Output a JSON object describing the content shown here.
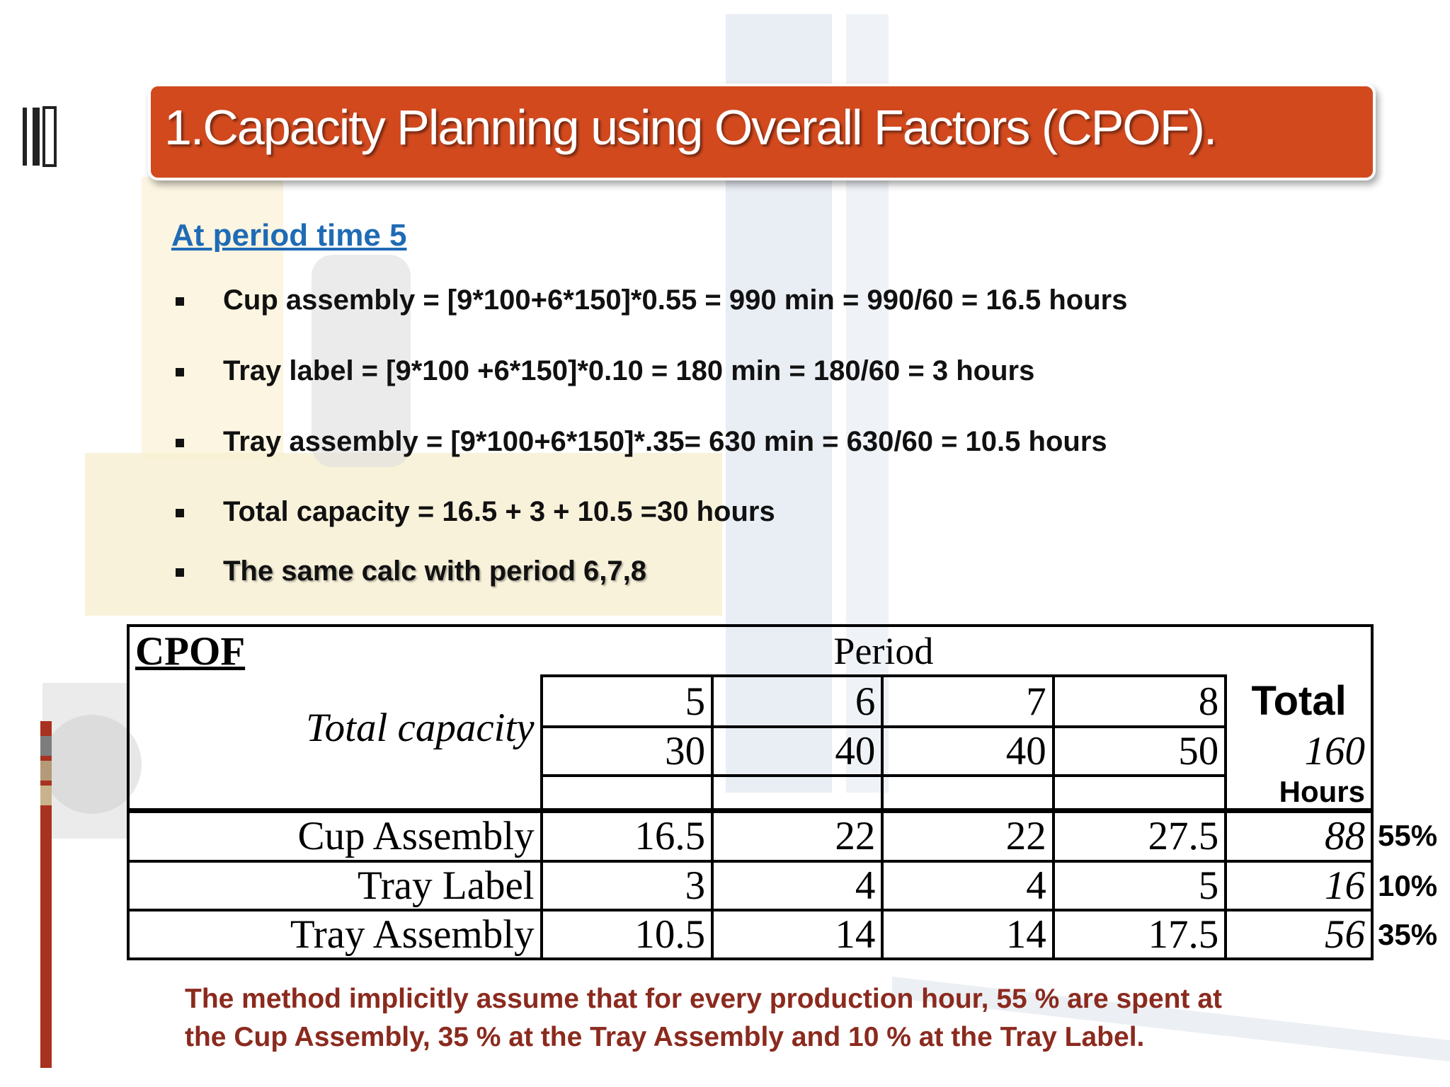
{
  "title": "1.Capacity Planning using Overall Factors (CPOF).",
  "subtitle": "At period time 5",
  "bullets": [
    "Cup assembly = [9*100+6*150]*0.55 = 990 min = 990/60 = 16.5 hours",
    "Tray label = [9*100 +6*150]*0.10 = 180 min = 180/60 = 3 hours",
    "Tray assembly = [9*100+6*150]*.35= 630 min = 630/60 = 10.5 hours",
    "Total capacity = 16.5 + 3 + 10.5 =30 hours",
    "The same calc with period 6,7,8"
  ],
  "table": {
    "corner": "CPOF",
    "group_header": "Period",
    "capacity_label": "Total capacity",
    "total_header": "Total",
    "total_unit": "Hours",
    "periods": [
      5,
      6,
      7,
      8
    ],
    "capacity": [
      30,
      40,
      40,
      50
    ],
    "capacity_total": 160,
    "rows": [
      {
        "label": "Cup Assembly",
        "values": [
          16.5,
          22,
          22,
          27.5
        ],
        "total": 88,
        "share": "55%"
      },
      {
        "label": "Tray Label",
        "values": [
          3,
          4,
          4,
          5
        ],
        "total": 16,
        "share": "10%"
      },
      {
        "label": "Tray Assembly",
        "values": [
          10.5,
          14,
          14,
          17.5
        ],
        "total": 56,
        "share": "35%"
      }
    ]
  },
  "note": [
    "The method implicitly assume that for every production hour, 55 % are spent at",
    "the Cup Assembly, 35 % at the Tray Assembly and 10 % at the Tray Label."
  ]
}
